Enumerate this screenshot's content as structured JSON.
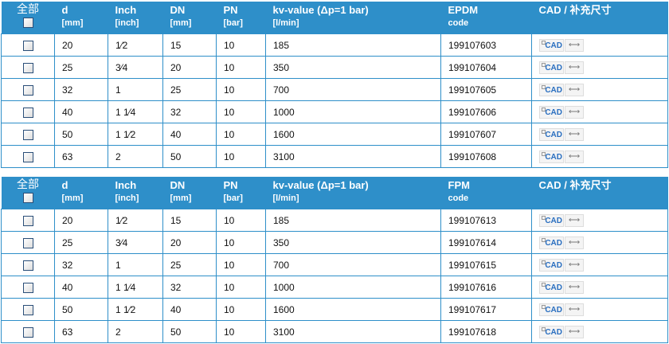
{
  "tables": [
    {
      "header": {
        "select_all": "全部",
        "d": "d",
        "d_unit": "[mm]",
        "inch": "Inch",
        "inch_unit": "[inch]",
        "dn": "DN",
        "dn_unit": "[mm]",
        "pn": "PN",
        "pn_unit": "[bar]",
        "kv": "kv-value (Δp=1 bar)",
        "kv_unit": "[l/min]",
        "code": "EPDM",
        "code_unit": "code",
        "cad": "CAD / 补充尺寸"
      },
      "rows": [
        {
          "d": "20",
          "inch": "1⁄2",
          "dn": "15",
          "pn": "10",
          "kv": "185",
          "code": "199107603"
        },
        {
          "d": "25",
          "inch": "3⁄4",
          "dn": "20",
          "pn": "10",
          "kv": "350",
          "code": "199107604"
        },
        {
          "d": "32",
          "inch": "1",
          "dn": "25",
          "pn": "10",
          "kv": "700",
          "code": "199107605"
        },
        {
          "d": "40",
          "inch": "1 1⁄4",
          "dn": "32",
          "pn": "10",
          "kv": "1000",
          "code": "199107606"
        },
        {
          "d": "50",
          "inch": "1 1⁄2",
          "dn": "40",
          "pn": "10",
          "kv": "1600",
          "code": "199107607"
        },
        {
          "d": "63",
          "inch": "2",
          "dn": "50",
          "pn": "10",
          "kv": "3100",
          "code": "199107608"
        }
      ]
    },
    {
      "header": {
        "select_all": "全部",
        "d": "d",
        "d_unit": "[mm]",
        "inch": "Inch",
        "inch_unit": "[inch]",
        "dn": "DN",
        "dn_unit": "[mm]",
        "pn": "PN",
        "pn_unit": "[bar]",
        "kv": "kv-value (Δp=1 bar)",
        "kv_unit": "[l/min]",
        "code": "FPM",
        "code_unit": "code",
        "cad": "CAD / 补充尺寸"
      },
      "rows": [
        {
          "d": "20",
          "inch": "1⁄2",
          "dn": "15",
          "pn": "10",
          "kv": "185",
          "code": "199107613"
        },
        {
          "d": "25",
          "inch": "3⁄4",
          "dn": "20",
          "pn": "10",
          "kv": "350",
          "code": "199107614"
        },
        {
          "d": "32",
          "inch": "1",
          "dn": "25",
          "pn": "10",
          "kv": "700",
          "code": "199107615"
        },
        {
          "d": "40",
          "inch": "1 1⁄4",
          "dn": "32",
          "pn": "10",
          "kv": "1000",
          "code": "199107616"
        },
        {
          "d": "50",
          "inch": "1 1⁄2",
          "dn": "40",
          "pn": "10",
          "kv": "1600",
          "code": "199107617"
        },
        {
          "d": "63",
          "inch": "2",
          "dn": "50",
          "pn": "10",
          "kv": "3100",
          "code": "199107618"
        }
      ]
    }
  ],
  "icons": {
    "cad": "CAD",
    "dimension": "⟷"
  },
  "colors": {
    "header_bg": "#2e8fc9",
    "border": "#2e8fc9",
    "cad_text": "#2a6fc0"
  }
}
